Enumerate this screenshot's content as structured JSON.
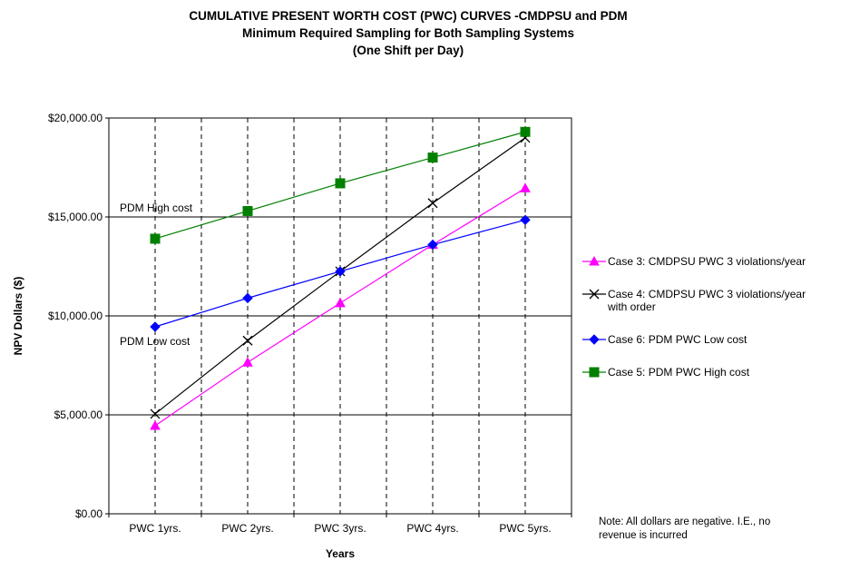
{
  "chart_data": {
    "type": "line",
    "title_lines": [
      "CUMULATIVE PRESENT WORTH COST (PWC) CURVES -CMDPSU and PDM",
      "Minimum Required Sampling for Both Sampling Systems",
      "(One Shift per Day)"
    ],
    "xlabel": "Years",
    "ylabel": "NPV Dollars ($)",
    "categories": [
      "PWC 1yrs.",
      "PWC 2yrs.",
      "PWC 3yrs.",
      "PWC 4yrs.",
      "PWC 5yrs."
    ],
    "ylim": [
      0,
      20000
    ],
    "yticks": [
      0,
      5000,
      10000,
      15000,
      20000
    ],
    "ytick_labels": [
      "$0.00",
      "$5,000.00",
      "$10,000.00",
      "$15,000.00",
      "$20,000.00"
    ],
    "grid": {
      "horizontal": true,
      "vertical_dashed": true
    },
    "legend_position": "right",
    "series": [
      {
        "name": "Case 3: CMDPSU PWC 3 violations/year",
        "name_lines": [
          "Case 3: CMDPSU PWC 3 violations/year"
        ],
        "color": "#ff00ff",
        "marker": "triangle",
        "values": [
          4450,
          7650,
          10650,
          13600,
          16450
        ]
      },
      {
        "name": "Case 4: CMDPSU PWC 3 violations/year with order",
        "name_lines": [
          "Case 4: CMDPSU PWC 3 violations/year",
          "with order"
        ],
        "color": "#000000",
        "marker": "x",
        "values": [
          5050,
          8750,
          12250,
          15700,
          19000
        ]
      },
      {
        "name": "Case 6: PDM PWC Low cost",
        "name_lines": [
          "Case 6: PDM PWC Low cost"
        ],
        "color": "#0000ff",
        "marker": "diamond",
        "values": [
          9450,
          10900,
          12250,
          13600,
          14850
        ]
      },
      {
        "name": "Case 5: PDM PWC High cost",
        "name_lines": [
          "Case 5: PDM PWC High cost"
        ],
        "color": "#008000",
        "marker": "square",
        "values": [
          13900,
          15300,
          16700,
          18000,
          19300
        ]
      }
    ],
    "annotations": [
      {
        "text": "PDM High cost"
      },
      {
        "text": "PDM Low cost"
      }
    ],
    "note_lines": [
      "Note: All dollars are negative.  I.E., no",
      "revenue is incurred"
    ]
  }
}
